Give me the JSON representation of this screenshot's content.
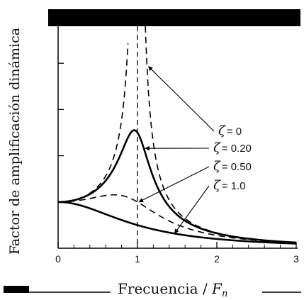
{
  "chart_data": {
    "type": "line",
    "title": "",
    "xlabel": "Frecuencia / F_n",
    "xlabel_main": "Frecuencia / ",
    "xlabel_var": "F",
    "xlabel_sub": "n",
    "ylabel": "Factor de amplificación dinámica",
    "xlim": [
      0,
      3
    ],
    "ylim": [
      0,
      4.8
    ],
    "x_ticks": [
      "0",
      "1",
      "2",
      "3"
    ],
    "x_tick_values": [
      0,
      1,
      2,
      3
    ],
    "y_tick_values": [
      1,
      2,
      3,
      4
    ],
    "grid": false,
    "resonance_line_x": 1,
    "series": [
      {
        "name": "ζ = 0",
        "zeta": 0,
        "style": "dashed",
        "label_symbol": "ζ",
        "label_value": "= 0"
      },
      {
        "name": "ζ = 0.20",
        "zeta": 0.2,
        "style": "solid",
        "label_symbol": "ζ",
        "label_value": "= 0.20"
      },
      {
        "name": "ζ = 0.50",
        "zeta": 0.5,
        "style": "dashed",
        "label_symbol": "ζ",
        "label_value": "= 0.50"
      },
      {
        "name": "ζ = 1.0",
        "zeta": 1.0,
        "style": "solid",
        "label_symbol": "ζ",
        "label_value": "= 1.0"
      }
    ]
  }
}
